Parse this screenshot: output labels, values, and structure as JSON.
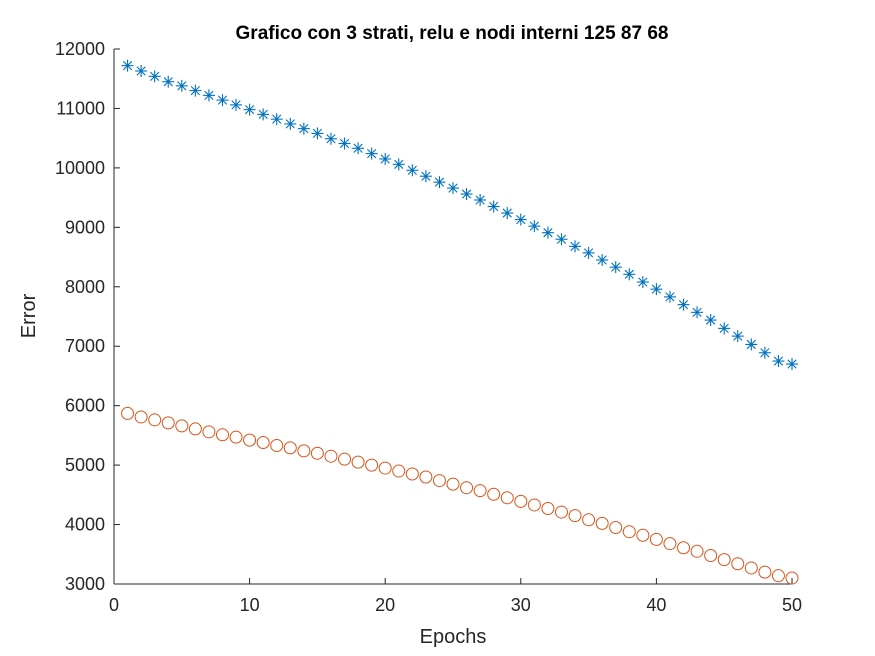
{
  "chart_data": {
    "type": "scatter",
    "title": "Grafico con 3 strati, relu e nodi interni 125   87   68",
    "xlabel": "Epochs",
    "ylabel": "Error",
    "xlim": [
      0,
      50
    ],
    "ylim": [
      3000,
      12000
    ],
    "xticks": [
      0,
      10,
      20,
      30,
      40,
      50
    ],
    "yticks": [
      3000,
      4000,
      5000,
      6000,
      7000,
      8000,
      9000,
      10000,
      11000,
      12000
    ],
    "grid": false,
    "legend": "none",
    "x": [
      1,
      2,
      3,
      4,
      5,
      6,
      7,
      8,
      9,
      10,
      11,
      12,
      13,
      14,
      15,
      16,
      17,
      18,
      19,
      20,
      21,
      22,
      23,
      24,
      25,
      26,
      27,
      28,
      29,
      30,
      31,
      32,
      33,
      34,
      35,
      36,
      37,
      38,
      39,
      40,
      41,
      42,
      43,
      44,
      45,
      46,
      47,
      48,
      49,
      50
    ],
    "series": [
      {
        "marker": "asterisk",
        "color": "#0072BD",
        "values": [
          11720,
          11630,
          11540,
          11450,
          11380,
          11300,
          11220,
          11140,
          11060,
          10980,
          10900,
          10820,
          10740,
          10660,
          10580,
          10490,
          10410,
          10330,
          10240,
          10150,
          10060,
          9960,
          9860,
          9760,
          9660,
          9560,
          9460,
          9350,
          9240,
          9130,
          9020,
          8910,
          8800,
          8680,
          8570,
          8450,
          8330,
          8210,
          8080,
          7960,
          7830,
          7700,
          7570,
          7440,
          7300,
          7170,
          7030,
          6890,
          6750,
          6700
        ]
      },
      {
        "marker": "circle",
        "color": "#D95319",
        "values": [
          5870,
          5810,
          5760,
          5710,
          5660,
          5610,
          5560,
          5510,
          5470,
          5420,
          5380,
          5330,
          5290,
          5240,
          5200,
          5150,
          5100,
          5050,
          5000,
          4950,
          4900,
          4850,
          4800,
          4740,
          4680,
          4620,
          4570,
          4510,
          4450,
          4390,
          4330,
          4270,
          4210,
          4150,
          4080,
          4020,
          3950,
          3880,
          3820,
          3750,
          3680,
          3610,
          3550,
          3480,
          3410,
          3340,
          3270,
          3200,
          3140,
          3100
        ]
      }
    ]
  }
}
